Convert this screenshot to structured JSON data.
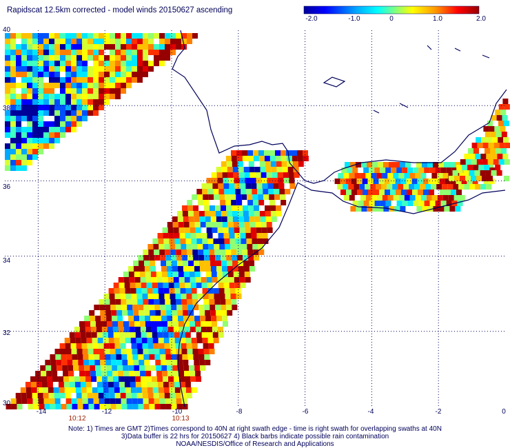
{
  "title": "Rapidscat 12.5km corrected - model winds 20150627 ascending",
  "colorbar": {
    "ticks": [
      "-2.0",
      "-1.0",
      "0",
      "1.0",
      "2.0"
    ],
    "values": [
      -2.0,
      -1.0,
      0,
      1.0,
      2.0
    ]
  },
  "axes": {
    "lat_labels": [
      "40",
      "38",
      "36",
      "34",
      "32",
      "30"
    ],
    "lon_labels": [
      "-14",
      "-12",
      "-10",
      "-8",
      "-6",
      "-4",
      "-2",
      "0"
    ],
    "swath_times": [
      "10:12",
      "10:13"
    ]
  },
  "notes": {
    "line1": "Note: 1) Times are GMT 2)Times correspond to 40N at right swath edge - time is right swath for overlapping swaths at 40N",
    "line2": "3)Data buffer is 22 hrs for 20150627 4) Black barbs indicate possible rain contamination",
    "line3": "NOAA/NESDIS/Office of Research and Applications"
  },
  "colors": {
    "text": "#00005a",
    "coast": "#00005a",
    "time_label": "#a02000",
    "grid": "#00005a"
  },
  "map": {
    "lon_range": [
      -15,
      0
    ],
    "lat_range": [
      30,
      40
    ],
    "grid_on": true,
    "grid_style": "dotted"
  }
}
